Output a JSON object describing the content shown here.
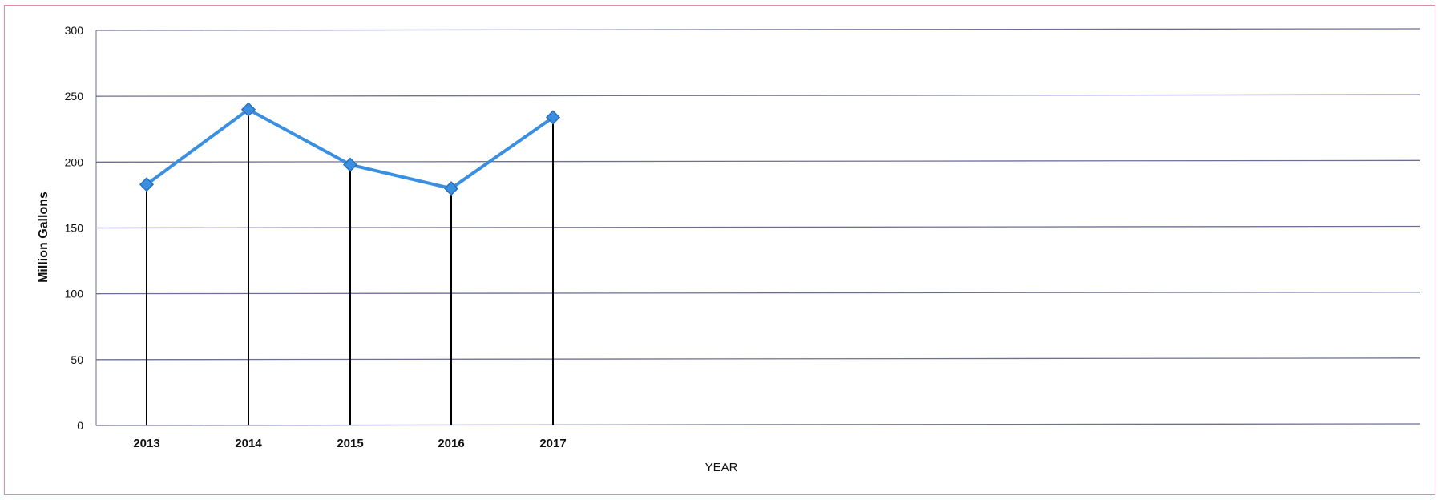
{
  "chart_data": {
    "type": "line",
    "title": "",
    "xlabel": "YEAR",
    "ylabel": "Million Gallons",
    "categories": [
      "2013",
      "2014",
      "2015",
      "2016",
      "2017"
    ],
    "series": [
      {
        "values": [
          183,
          240,
          198,
          180,
          234
        ],
        "color": "#3b8fe0"
      }
    ],
    "ylim": [
      0,
      300
    ],
    "yticks": [
      0,
      50,
      100,
      150,
      200,
      250,
      300
    ],
    "grid": true,
    "drop_lines": true,
    "marker": "diamond"
  }
}
